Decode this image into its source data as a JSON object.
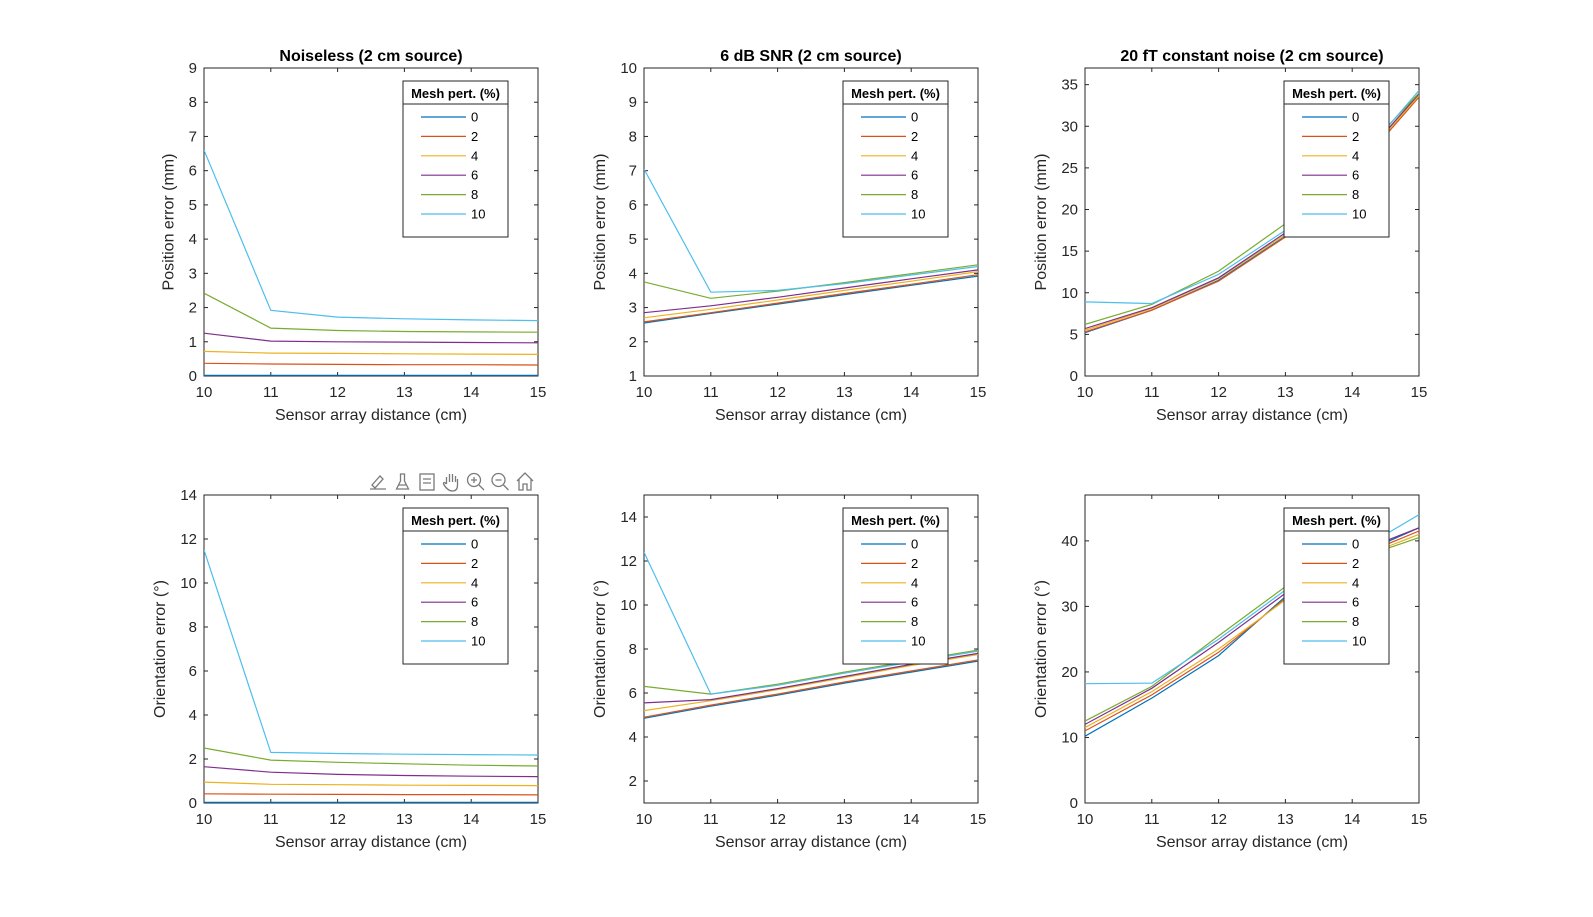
{
  "toolbar": {
    "icons": [
      "brush-edit-icon",
      "data-tips-icon",
      "datatip-text-icon",
      "pan-hand-icon",
      "zoom-in-icon",
      "zoom-out-icon",
      "home-icon"
    ]
  },
  "series_colors": [
    "#0072BD",
    "#D95319",
    "#EDB120",
    "#7E2F8E",
    "#77AC30",
    "#4DBEEE"
  ],
  "chart_data": [
    {
      "type": "line",
      "title": "Noiseless (2 cm source)",
      "xlabel": "Sensor array distance (cm)",
      "ylabel": "Position error (mm)",
      "xlim": [
        10,
        15
      ],
      "ylim": [
        0,
        9
      ],
      "xticks": [
        10,
        11,
        12,
        13,
        14,
        15
      ],
      "yticks": [
        0,
        1,
        2,
        3,
        4,
        5,
        6,
        7,
        8,
        9
      ],
      "x": [
        10,
        11,
        12,
        13,
        14,
        15
      ],
      "legend": {
        "title": "Mesh pert. (%)",
        "position": "top-right"
      },
      "series": [
        {
          "name": "0",
          "values": [
            0.02,
            0.02,
            0.02,
            0.02,
            0.02,
            0.02
          ]
        },
        {
          "name": "2",
          "values": [
            0.37,
            0.35,
            0.34,
            0.33,
            0.33,
            0.32
          ]
        },
        {
          "name": "4",
          "values": [
            0.72,
            0.67,
            0.66,
            0.65,
            0.64,
            0.63
          ]
        },
        {
          "name": "6",
          "values": [
            1.25,
            1.02,
            1.0,
            0.99,
            0.98,
            0.97
          ]
        },
        {
          "name": "8",
          "values": [
            2.42,
            1.4,
            1.33,
            1.3,
            1.29,
            1.28
          ]
        },
        {
          "name": "10",
          "values": [
            6.6,
            1.92,
            1.72,
            1.67,
            1.64,
            1.62
          ]
        }
      ]
    },
    {
      "type": "line",
      "title": "6 dB SNR (2 cm source)",
      "xlabel": "Sensor array distance (cm)",
      "ylabel": "Position error (mm)",
      "xlim": [
        10,
        15
      ],
      "ylim": [
        1,
        10
      ],
      "xticks": [
        10,
        11,
        12,
        13,
        14,
        15
      ],
      "yticks": [
        1,
        2,
        3,
        4,
        5,
        6,
        7,
        8,
        9,
        10
      ],
      "x": [
        10,
        11,
        12,
        13,
        14,
        15
      ],
      "legend": {
        "title": "Mesh pert. (%)",
        "position": "top-right"
      },
      "series": [
        {
          "name": "0",
          "values": [
            2.55,
            2.83,
            3.1,
            3.38,
            3.65,
            3.92
          ]
        },
        {
          "name": "2",
          "values": [
            2.58,
            2.85,
            3.13,
            3.41,
            3.68,
            3.96
          ]
        },
        {
          "name": "4",
          "values": [
            2.7,
            2.95,
            3.22,
            3.5,
            3.77,
            4.05
          ]
        },
        {
          "name": "6",
          "values": [
            2.85,
            3.05,
            3.3,
            3.57,
            3.84,
            4.1
          ]
        },
        {
          "name": "8",
          "values": [
            3.75,
            3.27,
            3.48,
            3.73,
            3.99,
            4.25
          ]
        },
        {
          "name": "10",
          "values": [
            7.05,
            3.45,
            3.5,
            3.7,
            3.95,
            4.2
          ]
        }
      ]
    },
    {
      "type": "line",
      "title": "20 fT constant noise (2 cm source)",
      "xlabel": "Sensor array distance (cm)",
      "ylabel": "Position error (mm)",
      "xlim": [
        10,
        15
      ],
      "ylim": [
        0,
        37
      ],
      "xticks": [
        10,
        11,
        12,
        13,
        14,
        15
      ],
      "yticks": [
        0,
        5,
        10,
        15,
        20,
        25,
        30,
        35
      ],
      "x": [
        10,
        11,
        12,
        13,
        14,
        15
      ],
      "legend": {
        "title": "Mesh pert. (%)",
        "position": "top-right"
      },
      "series": [
        {
          "name": "0",
          "values": [
            5.2,
            7.9,
            11.5,
            16.8,
            24.5,
            33.8
          ]
        },
        {
          "name": "2",
          "values": [
            5.3,
            7.9,
            11.4,
            16.7,
            24.3,
            33.5
          ]
        },
        {
          "name": "4",
          "values": [
            5.5,
            8.1,
            11.7,
            17.0,
            24.6,
            33.7
          ]
        },
        {
          "name": "6",
          "values": [
            5.7,
            8.2,
            11.8,
            17.2,
            24.8,
            33.9
          ]
        },
        {
          "name": "8",
          "values": [
            6.2,
            8.6,
            12.6,
            18.3,
            25.5,
            34.0
          ]
        },
        {
          "name": "10",
          "values": [
            8.9,
            8.7,
            12.2,
            17.5,
            25.0,
            34.3
          ]
        }
      ]
    },
    {
      "type": "line",
      "title": "",
      "xlabel": "Sensor array distance (cm)",
      "ylabel": "Orientation error (°)",
      "xlim": [
        10,
        15
      ],
      "ylim": [
        0,
        14
      ],
      "xticks": [
        10,
        11,
        12,
        13,
        14,
        15
      ],
      "yticks": [
        0,
        2,
        4,
        6,
        8,
        10,
        12,
        14
      ],
      "x": [
        10,
        11,
        12,
        13,
        14,
        15
      ],
      "legend": {
        "title": "Mesh pert. (%)",
        "position": "top-right"
      },
      "series": [
        {
          "name": "0",
          "values": [
            0.03,
            0.03,
            0.03,
            0.03,
            0.03,
            0.03
          ]
        },
        {
          "name": "2",
          "values": [
            0.42,
            0.4,
            0.39,
            0.38,
            0.38,
            0.37
          ]
        },
        {
          "name": "4",
          "values": [
            0.95,
            0.85,
            0.83,
            0.81,
            0.8,
            0.79
          ]
        },
        {
          "name": "6",
          "values": [
            1.65,
            1.4,
            1.3,
            1.25,
            1.22,
            1.2
          ]
        },
        {
          "name": "8",
          "values": [
            2.5,
            1.95,
            1.85,
            1.78,
            1.72,
            1.68
          ]
        },
        {
          "name": "10",
          "values": [
            11.5,
            2.3,
            2.25,
            2.22,
            2.2,
            2.18
          ]
        }
      ]
    },
    {
      "type": "line",
      "title": "",
      "xlabel": "Sensor array distance (cm)",
      "ylabel": "Orientation error (°)",
      "xlim": [
        10,
        15
      ],
      "ylim": [
        1,
        15
      ],
      "xticks": [
        10,
        11,
        12,
        13,
        14,
        15
      ],
      "yticks": [
        2,
        4,
        6,
        8,
        10,
        12,
        14
      ],
      "x": [
        10,
        11,
        12,
        13,
        14,
        15
      ],
      "legend": {
        "title": "Mesh pert. (%)",
        "position": "top-right"
      },
      "series": [
        {
          "name": "0",
          "values": [
            4.85,
            5.4,
            5.9,
            6.45,
            6.95,
            7.45
          ]
        },
        {
          "name": "2",
          "values": [
            4.9,
            5.45,
            5.95,
            6.5,
            7.0,
            7.5
          ]
        },
        {
          "name": "4",
          "values": [
            5.2,
            5.65,
            6.15,
            6.7,
            7.25,
            7.75
          ]
        },
        {
          "name": "6",
          "values": [
            5.55,
            5.7,
            6.2,
            6.75,
            7.3,
            7.8
          ]
        },
        {
          "name": "8",
          "values": [
            6.3,
            5.95,
            6.4,
            6.95,
            7.45,
            7.95
          ]
        },
        {
          "name": "10",
          "values": [
            12.4,
            5.95,
            6.35,
            6.9,
            7.4,
            7.9
          ]
        }
      ]
    },
    {
      "type": "line",
      "title": "",
      "xlabel": "Sensor array distance (cm)",
      "ylabel": "Orientation error (°)",
      "xlim": [
        10,
        15
      ],
      "ylim": [
        0,
        47
      ],
      "xticks": [
        10,
        11,
        12,
        13,
        14,
        15
      ],
      "yticks": [
        0,
        10,
        20,
        30,
        40
      ],
      "x": [
        10,
        11,
        12,
        13,
        14,
        15
      ],
      "legend": {
        "title": "Mesh pert. (%)",
        "position": "top-right"
      },
      "series": [
        {
          "name": "0",
          "values": [
            10.2,
            16.0,
            22.5,
            31.5,
            37.5,
            42.0
          ]
        },
        {
          "name": "2",
          "values": [
            11.0,
            16.5,
            23.0,
            31.2,
            37.3,
            41.5
          ]
        },
        {
          "name": "4",
          "values": [
            11.5,
            17.0,
            23.5,
            31.0,
            37.0,
            41.0
          ]
        },
        {
          "name": "6",
          "values": [
            12.0,
            17.5,
            24.5,
            32.0,
            38.0,
            42.0
          ]
        },
        {
          "name": "8",
          "values": [
            12.5,
            17.8,
            25.5,
            33.0,
            37.0,
            40.5
          ]
        },
        {
          "name": "10",
          "values": [
            18.2,
            18.3,
            25.0,
            32.5,
            38.0,
            44.0
          ]
        }
      ]
    }
  ]
}
